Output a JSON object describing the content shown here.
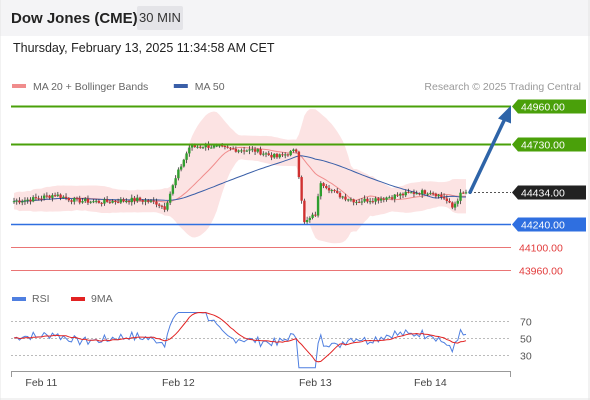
{
  "header": {
    "title": "Dow Jones (CME)",
    "timeframe": "30 MIN",
    "datetime": "Thursday, February 13, 2025 11:34:58 AM CET"
  },
  "chart_data": {
    "type": "candlestick",
    "legend": [
      {
        "name": "MA 20 + Bollinger Bands",
        "color": "#f08c8c"
      },
      {
        "name": "MA 50",
        "color": "#3a5fa8"
      }
    ],
    "attribution": "Research © 2025 Trading Central",
    "x_ticks": [
      "Feb 11",
      "Feb 12",
      "Feb 13",
      "Feb 14"
    ],
    "price_range": [
      43940,
      44975
    ],
    "levels": [
      {
        "value": 44960,
        "label": "44960.00",
        "kind": "resistance",
        "color": "#4aa00a"
      },
      {
        "value": 44730,
        "label": "44730.00",
        "kind": "resistance",
        "color": "#4aa00a"
      },
      {
        "value": 44434,
        "label": "44434.00",
        "kind": "last",
        "color": "#222222"
      },
      {
        "value": 44240,
        "label": "44240.00",
        "kind": "pivot",
        "color": "#2f6fe0"
      },
      {
        "value": 44100,
        "label": "44100.00",
        "kind": "support",
        "color": "#e23b3b"
      },
      {
        "value": 43960,
        "label": "43960.00",
        "kind": "support",
        "color": "#e23b3b"
      }
    ],
    "arrow": {
      "from": 44434,
      "to": 44960,
      "color": "#2e64a8"
    },
    "rsi": {
      "legend": [
        {
          "name": "RSI",
          "color": "#4f7fe0"
        },
        {
          "name": "9MA",
          "color": "#e22222"
        }
      ],
      "range": [
        15,
        80
      ],
      "ticks": [
        70,
        50,
        30
      ]
    }
  }
}
